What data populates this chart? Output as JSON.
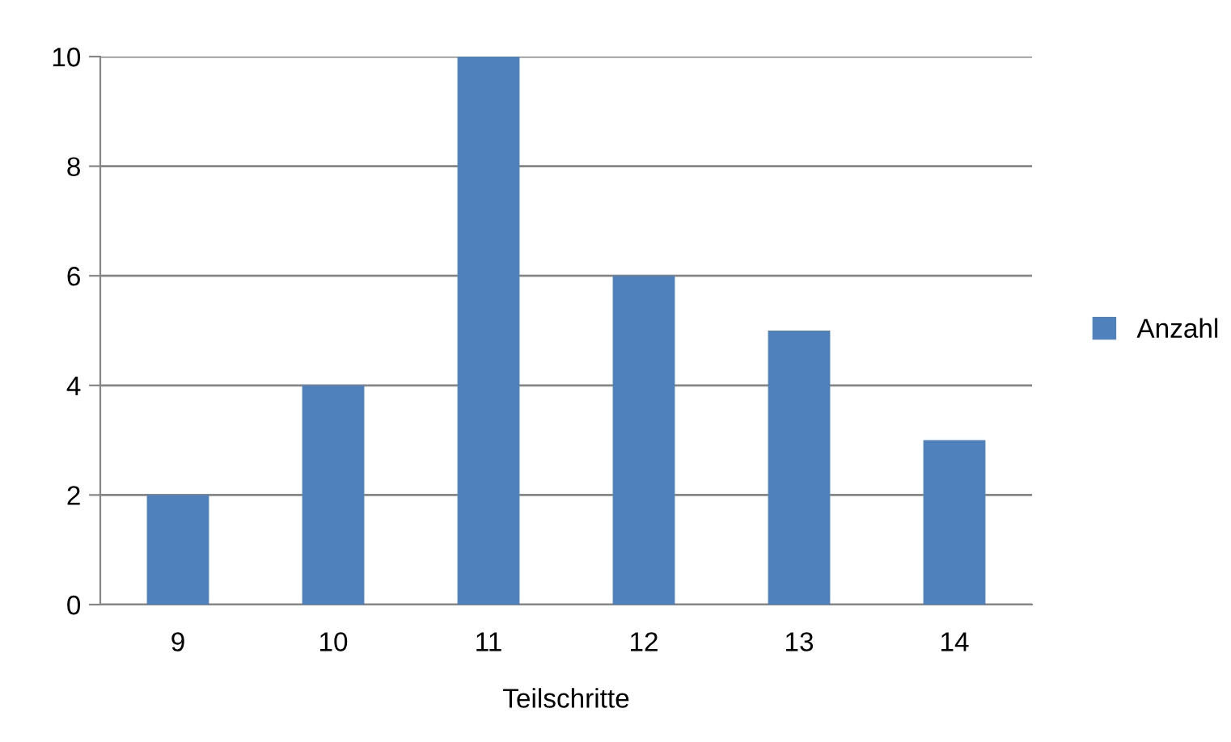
{
  "chart_data": {
    "type": "bar",
    "xlabel": "Teilschritte",
    "categories": [
      "9",
      "10",
      "11",
      "12",
      "13",
      "14"
    ],
    "series": [
      {
        "name": "Anzahl",
        "color": "#4f81bd",
        "values": [
          2,
          4,
          10,
          6,
          5,
          3
        ]
      }
    ],
    "ylim": [
      0,
      10
    ],
    "yticks": [
      0,
      2,
      4,
      6,
      8,
      10
    ],
    "grid": "y",
    "legend": "right"
  }
}
